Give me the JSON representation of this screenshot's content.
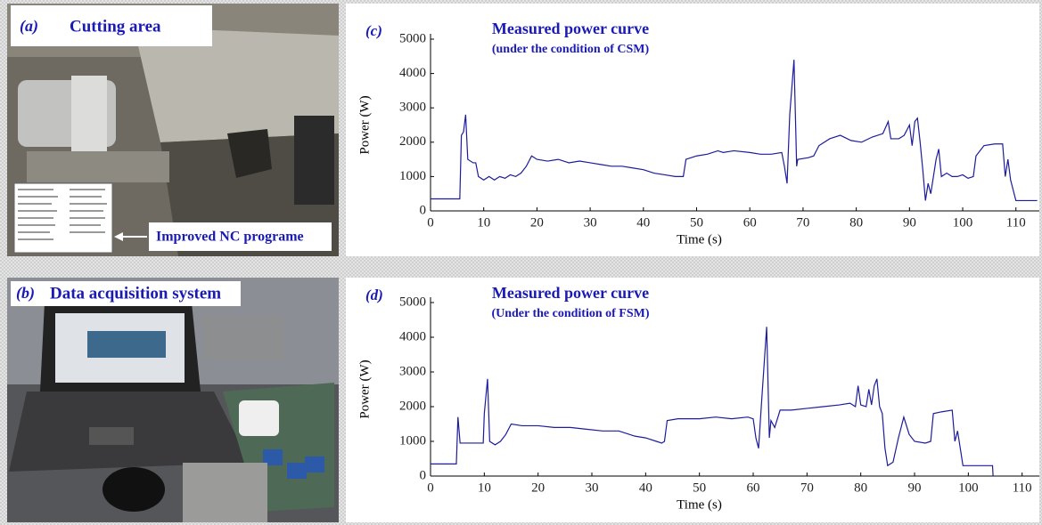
{
  "panels": [
    {
      "label": "(a)",
      "title": "Cutting area",
      "annotation": "Improved NC programe"
    },
    {
      "label": "(b)",
      "title": "Data acquisition system"
    }
  ],
  "chart_data": [
    {
      "type": "line",
      "label": "(c)",
      "title": "Measured power curve",
      "subtitle": "(under the condition of CSM)",
      "x_label": "Time (s)",
      "y_label": "Power (W)",
      "xlim": [
        0,
        114.4
      ],
      "ylim": [
        0,
        5000
      ],
      "xticks": [
        0,
        10,
        20,
        30,
        40,
        50,
        60,
        70,
        80,
        90,
        100,
        110
      ],
      "yticks": [
        0,
        1000,
        2000,
        3000,
        4000,
        5000
      ],
      "series": [
        {
          "color": "#1c1c9c",
          "x": [
            0,
            5.5,
            5.8,
            6.2,
            6.6,
            7,
            8,
            8.5,
            9,
            10,
            11,
            12,
            13,
            14,
            15,
            16,
            17,
            18,
            19,
            20,
            22,
            24,
            26,
            28,
            30,
            32,
            34,
            36,
            38,
            40,
            42,
            44,
            46,
            47.5,
            48,
            50,
            52,
            54,
            55,
            57,
            60,
            62,
            64,
            66,
            66.5,
            67,
            67.5,
            68.3,
            68.8,
            69,
            71,
            72,
            73,
            75,
            77,
            79,
            81,
            83,
            85,
            86,
            86.5,
            88,
            89,
            90,
            90.5,
            91,
            91.5,
            92,
            92.5,
            93,
            93.5,
            94,
            95,
            95.5,
            96,
            97,
            98,
            99,
            100,
            101,
            102,
            102.5,
            104,
            106,
            107.5,
            108,
            108.5,
            109,
            110,
            114
          ],
          "y": [
            350,
            350,
            2200,
            2300,
            2800,
            1500,
            1400,
            1400,
            1000,
            900,
            1000,
            900,
            1000,
            950,
            1050,
            1000,
            1100,
            1300,
            1600,
            1500,
            1450,
            1500,
            1400,
            1450,
            1400,
            1350,
            1300,
            1300,
            1250,
            1200,
            1100,
            1050,
            1000,
            1000,
            1500,
            1600,
            1650,
            1750,
            1700,
            1750,
            1700,
            1650,
            1650,
            1700,
            1300,
            800,
            2800,
            4400,
            1300,
            1500,
            1550,
            1600,
            1900,
            2100,
            2200,
            2050,
            2000,
            2150,
            2250,
            2600,
            2100,
            2100,
            2200,
            2500,
            1900,
            2600,
            2700,
            2000,
            1200,
            300,
            800,
            500,
            1500,
            1800,
            1000,
            1100,
            1000,
            1000,
            1050,
            950,
            1000,
            1600,
            1900,
            1950,
            1950,
            1000,
            1500,
            900,
            300,
            300
          ]
        }
      ]
    },
    {
      "type": "line",
      "label": "(d)",
      "title": "Measured power curve",
      "subtitle": "(Under the condition of FSM)",
      "x_label": "Time (s)",
      "y_label": "Power (W)",
      "xlim": [
        0,
        113.2
      ],
      "ylim": [
        0,
        5000
      ],
      "xticks": [
        0,
        10,
        20,
        30,
        40,
        50,
        60,
        70,
        80,
        90,
        100,
        110
      ],
      "yticks": [
        0,
        1000,
        2000,
        3000,
        4000,
        5000
      ],
      "series": [
        {
          "color": "#1c1c9c",
          "x": [
            0,
            4.8,
            5.1,
            5.5,
            9.8,
            10,
            10.6,
            11,
            12,
            13,
            14,
            15,
            17,
            20,
            23,
            26,
            29,
            32,
            35,
            38,
            40,
            42,
            43,
            43.5,
            44,
            46,
            50,
            53,
            56,
            59,
            60,
            60.5,
            61,
            61.5,
            62.5,
            63,
            63.3,
            64,
            65,
            67,
            70,
            73,
            76,
            78,
            79,
            79.5,
            80,
            81,
            81.5,
            82,
            82.5,
            83,
            83.5,
            84,
            84.5,
            85,
            86,
            87,
            88,
            89,
            90,
            92,
            93,
            93.5,
            95,
            97,
            97.5,
            98,
            98.5,
            99,
            104.5,
            104.6
          ],
          "y": [
            350,
            350,
            1700,
            950,
            950,
            1800,
            2800,
            1000,
            900,
            1000,
            1200,
            1500,
            1450,
            1450,
            1400,
            1400,
            1350,
            1300,
            1300,
            1150,
            1100,
            1000,
            950,
            1000,
            1600,
            1650,
            1650,
            1700,
            1650,
            1700,
            1650,
            1100,
            800,
            2000,
            4300,
            1100,
            1600,
            1400,
            1900,
            1900,
            1950,
            2000,
            2050,
            2100,
            2000,
            2600,
            2050,
            2000,
            2500,
            2050,
            2600,
            2800,
            2000,
            1800,
            800,
            300,
            400,
            1100,
            1700,
            1200,
            1000,
            950,
            1000,
            1800,
            1850,
            1900,
            1000,
            1300,
            800,
            300,
            300,
            0
          ]
        }
      ]
    }
  ]
}
